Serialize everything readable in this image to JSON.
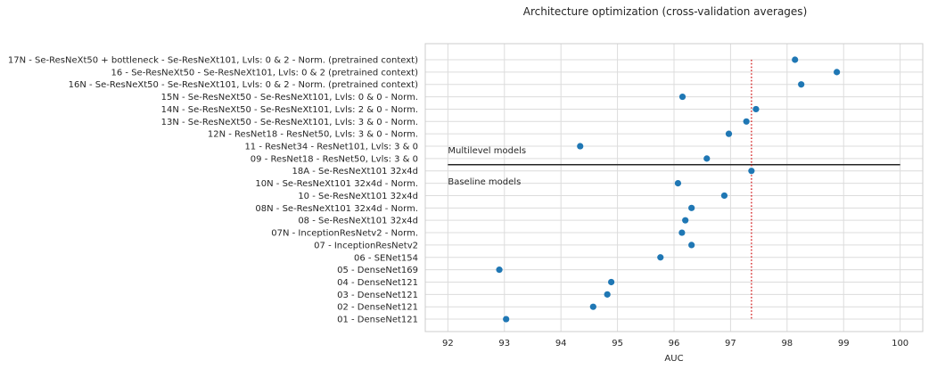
{
  "chart_data": {
    "type": "scatter",
    "title": "Architecture optimization (cross-validation averages)",
    "xlabel": "AUC",
    "ylabel": "",
    "xlim": [
      91.6,
      100.4
    ],
    "xticks": [
      "92",
      "93",
      "94",
      "95",
      "96",
      "97",
      "98",
      "99",
      "100"
    ],
    "grid": true,
    "marker_color": "#1f77b4",
    "categories": [
      "17N - Se-ResNeXt50 + bottleneck - Se-ResNeXt101, Lvls: 0 & 2  - Norm. (pretrained context)",
      "16 - Se-ResNeXt50 - Se-ResNeXt101, Lvls: 0 & 2  (pretrained context)",
      "16N - Se-ResNeXt50 - Se-ResNeXt101, Lvls: 0 & 2  - Norm. (pretrained context)",
      "15N - Se-ResNeXt50 - Se-ResNeXt101, Lvls: 0 & 0  - Norm.",
      "14N - Se-ResNeXt50 - Se-ResNeXt101, Lvls: 2 & 0  - Norm.",
      "13N - Se-ResNeXt50 - Se-ResNeXt101, Lvls: 3 & 0  - Norm.",
      "12N - ResNet18 - ResNet50, Lvls: 3 & 0  - Norm.",
      "11 - ResNet34 - ResNet101, Lvls: 3 & 0",
      "09 - ResNet18 - ResNet50, Lvls: 3 & 0",
      "18A - Se-ResNeXt101 32x4d",
      "10N - Se-ResNeXt101 32x4d - Norm.",
      "10 - Se-ResNeXt101 32x4d",
      "08N - Se-ResNeXt101 32x4d - Norm.",
      "08 - Se-ResNeXt101 32x4d",
      "07N - InceptionResNetv2 - Norm.",
      "07 - InceptionResNetv2",
      "06 - SENet154",
      "05 - DenseNet169",
      "04 - DenseNet121",
      "03 - DenseNet121",
      "02 - DenseNet121",
      "01 - DenseNet121"
    ],
    "values": [
      98.14,
      98.88,
      98.25,
      96.15,
      97.45,
      97.28,
      96.97,
      94.34,
      96.58,
      97.37,
      96.07,
      96.89,
      96.31,
      96.2,
      96.14,
      96.31,
      95.76,
      92.91,
      94.89,
      94.82,
      94.57,
      93.03
    ],
    "reference_line": {
      "x": 97.37,
      "color": "#d62728",
      "style": "dotted"
    },
    "separator": {
      "after_index": 8,
      "color": "#262626"
    },
    "annotations": {
      "upper": "Multilevel models",
      "lower": "Baseline models"
    }
  }
}
